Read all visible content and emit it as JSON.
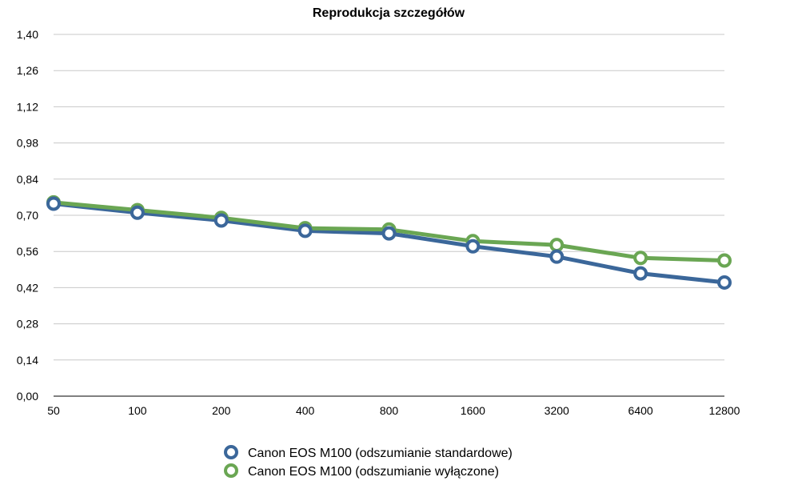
{
  "chart_data": {
    "type": "line",
    "title": "Reprodukcja szczegółów",
    "xlabel": "",
    "ylabel": "",
    "categories": [
      "50",
      "100",
      "200",
      "400",
      "800",
      "1600",
      "3200",
      "6400",
      "12800"
    ],
    "y_ticks": [
      "0,00",
      "0,14",
      "0,28",
      "0,42",
      "0,56",
      "0,70",
      "0,84",
      "0,98",
      "1,12",
      "1,26",
      "1,40"
    ],
    "ylim": [
      0,
      1.4
    ],
    "grid": true,
    "legend_position": "bottom",
    "series": [
      {
        "name": "Canon EOS M100 (odszumianie standardowe)",
        "color": "#3b679a",
        "values": [
          0.745,
          0.71,
          0.68,
          0.64,
          0.63,
          0.58,
          0.54,
          0.475,
          0.44
        ]
      },
      {
        "name": "Canon EOS M100 (odszumianie wyłączone)",
        "color": "#6aa653",
        "values": [
          0.75,
          0.72,
          0.69,
          0.65,
          0.645,
          0.6,
          0.585,
          0.535,
          0.525
        ]
      }
    ]
  }
}
